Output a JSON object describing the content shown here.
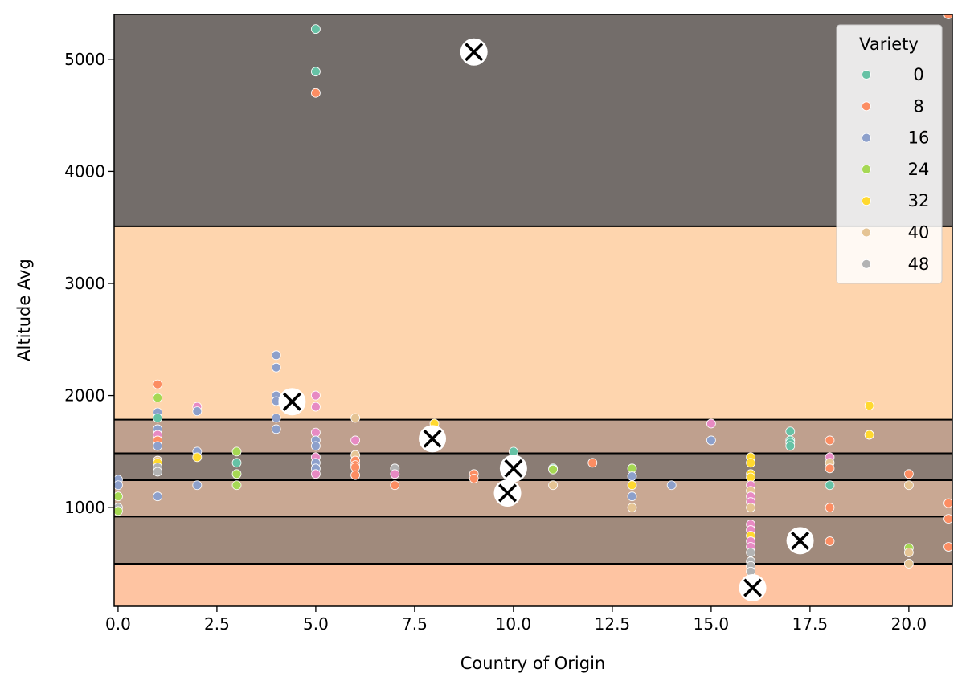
{
  "chart_data": {
    "type": "scatter",
    "xlabel": "Country of Origin",
    "ylabel": "Altitude Avg",
    "xlim": [
      -0.1,
      21.1
    ],
    "ylim": [
      120,
      5400
    ],
    "xticks": [
      "0.0",
      "2.5",
      "5.0",
      "7.5",
      "10.0",
      "12.5",
      "15.0",
      "17.5",
      "20.0"
    ],
    "xtick_values": [
      0,
      2.5,
      5,
      7.5,
      10,
      12.5,
      15,
      17.5,
      20
    ],
    "yticks": [
      "1000",
      "2000",
      "3000",
      "4000",
      "5000"
    ],
    "ytick_values": [
      1000,
      2000,
      3000,
      4000,
      5000
    ],
    "legend": {
      "title": "Variety",
      "placement": "top-right",
      "entries": [
        {
          "label": "0",
          "color": "#66c2a5"
        },
        {
          "label": "8",
          "color": "#fc8d62"
        },
        {
          "label": "16",
          "color": "#8da0cb"
        },
        {
          "label": "24",
          "color": "#a6d854"
        },
        {
          "label": "32",
          "color": "#ffd92f"
        },
        {
          "label": "40",
          "color": "#e5c494"
        },
        {
          "label": "48",
          "color": "#b3b3b3"
        }
      ]
    },
    "bands": [
      {
        "y0": 120,
        "y1": 500,
        "color": "#fec4a2"
      },
      {
        "y0": 500,
        "y1": 920,
        "color": "#a08a7c"
      },
      {
        "y0": 920,
        "y1": 1245,
        "color": "#c9a893"
      },
      {
        "y0": 1245,
        "y1": 1485,
        "color": "#8a7c74"
      },
      {
        "y0": 1485,
        "y1": 1785,
        "color": "#bfa08e"
      },
      {
        "y0": 1785,
        "y1": 3510,
        "color": "#fed5ae"
      },
      {
        "y0": 3510,
        "y1": 5400,
        "color": "#736d6a"
      }
    ],
    "boundaries": [
      500,
      920,
      1245,
      1485,
      1785,
      3510
    ],
    "centroids": [
      {
        "x": 9.0,
        "y": 5065
      },
      {
        "x": 4.4,
        "y": 1945
      },
      {
        "x": 7.95,
        "y": 1615
      },
      {
        "x": 10.0,
        "y": 1350
      },
      {
        "x": 9.85,
        "y": 1130
      },
      {
        "x": 17.25,
        "y": 705
      },
      {
        "x": 16.05,
        "y": 285
      }
    ],
    "points": [
      {
        "x": 0,
        "y": 1250,
        "c": "#8da0cb"
      },
      {
        "x": 0,
        "y": 1200,
        "c": "#8da0cb"
      },
      {
        "x": 0,
        "y": 1100,
        "c": "#a6d854"
      },
      {
        "x": 0,
        "y": 1000,
        "c": "#b3b3b3"
      },
      {
        "x": 0,
        "y": 970,
        "c": "#a6d854"
      },
      {
        "x": 1,
        "y": 2100,
        "c": "#fc8d62"
      },
      {
        "x": 1,
        "y": 1980,
        "c": "#a6d854"
      },
      {
        "x": 1,
        "y": 1850,
        "c": "#8da0cb"
      },
      {
        "x": 1,
        "y": 1800,
        "c": "#66c2a5"
      },
      {
        "x": 1,
        "y": 1700,
        "c": "#8da0cb"
      },
      {
        "x": 1,
        "y": 1650,
        "c": "#e78ac3"
      },
      {
        "x": 1,
        "y": 1600,
        "c": "#fc8d62"
      },
      {
        "x": 1,
        "y": 1550,
        "c": "#8da0cb"
      },
      {
        "x": 1,
        "y": 1420,
        "c": "#e5c494"
      },
      {
        "x": 1,
        "y": 1400,
        "c": "#ffd92f"
      },
      {
        "x": 1,
        "y": 1360,
        "c": "#b3b3b3"
      },
      {
        "x": 1,
        "y": 1320,
        "c": "#b3b3b3"
      },
      {
        "x": 1,
        "y": 1100,
        "c": "#8da0cb"
      },
      {
        "x": 2,
        "y": 1900,
        "c": "#e78ac3"
      },
      {
        "x": 2,
        "y": 1860,
        "c": "#8da0cb"
      },
      {
        "x": 2,
        "y": 1500,
        "c": "#8da0cb"
      },
      {
        "x": 2,
        "y": 1450,
        "c": "#ffd92f"
      },
      {
        "x": 2,
        "y": 1200,
        "c": "#8da0cb"
      },
      {
        "x": 3,
        "y": 1500,
        "c": "#a6d854"
      },
      {
        "x": 3,
        "y": 1400,
        "c": "#66c2a5"
      },
      {
        "x": 3,
        "y": 1300,
        "c": "#a6d854"
      },
      {
        "x": 3,
        "y": 1200,
        "c": "#a6d854"
      },
      {
        "x": 4,
        "y": 2360,
        "c": "#8da0cb"
      },
      {
        "x": 4,
        "y": 2250,
        "c": "#8da0cb"
      },
      {
        "x": 4,
        "y": 2000,
        "c": "#8da0cb"
      },
      {
        "x": 4,
        "y": 1950,
        "c": "#8da0cb"
      },
      {
        "x": 4,
        "y": 1800,
        "c": "#8da0cb"
      },
      {
        "x": 4,
        "y": 1700,
        "c": "#8da0cb"
      },
      {
        "x": 5,
        "y": 5270,
        "c": "#66c2a5"
      },
      {
        "x": 5,
        "y": 4890,
        "c": "#66c2a5"
      },
      {
        "x": 5,
        "y": 4700,
        "c": "#fc8d62"
      },
      {
        "x": 5,
        "y": 2000,
        "c": "#e78ac3"
      },
      {
        "x": 5,
        "y": 1900,
        "c": "#e78ac3"
      },
      {
        "x": 5,
        "y": 1670,
        "c": "#e78ac3"
      },
      {
        "x": 5,
        "y": 1600,
        "c": "#8da0cb"
      },
      {
        "x": 5,
        "y": 1550,
        "c": "#8da0cb"
      },
      {
        "x": 5,
        "y": 1450,
        "c": "#e78ac3"
      },
      {
        "x": 5,
        "y": 1400,
        "c": "#8da0cb"
      },
      {
        "x": 5,
        "y": 1350,
        "c": "#8da0cb"
      },
      {
        "x": 5,
        "y": 1300,
        "c": "#e78ac3"
      },
      {
        "x": 6,
        "y": 1800,
        "c": "#e5c494"
      },
      {
        "x": 6,
        "y": 1600,
        "c": "#e78ac3"
      },
      {
        "x": 6,
        "y": 1470,
        "c": "#e5c494"
      },
      {
        "x": 6,
        "y": 1420,
        "c": "#fc8d62"
      },
      {
        "x": 6,
        "y": 1380,
        "c": "#fc8d62"
      },
      {
        "x": 6,
        "y": 1360,
        "c": "#fc8d62"
      },
      {
        "x": 6,
        "y": 1290,
        "c": "#fc8d62"
      },
      {
        "x": 7,
        "y": 1350,
        "c": "#b3b3b3"
      },
      {
        "x": 7,
        "y": 1300,
        "c": "#e78ac3"
      },
      {
        "x": 7,
        "y": 1200,
        "c": "#fc8d62"
      },
      {
        "x": 8,
        "y": 1750,
        "c": "#ffd92f"
      },
      {
        "x": 9,
        "y": 1300,
        "c": "#fc8d62"
      },
      {
        "x": 9,
        "y": 1260,
        "c": "#fc8d62"
      },
      {
        "x": 10,
        "y": 1500,
        "c": "#66c2a5"
      },
      {
        "x": 11,
        "y": 1350,
        "c": "#66c2a5"
      },
      {
        "x": 11,
        "y": 1340,
        "c": "#a6d854"
      },
      {
        "x": 11,
        "y": 1200,
        "c": "#e5c494"
      },
      {
        "x": 12,
        "y": 1400,
        "c": "#fc8d62"
      },
      {
        "x": 13,
        "y": 1350,
        "c": "#a6d854"
      },
      {
        "x": 13,
        "y": 1280,
        "c": "#8da0cb"
      },
      {
        "x": 13,
        "y": 1200,
        "c": "#ffd92f"
      },
      {
        "x": 13,
        "y": 1100,
        "c": "#8da0cb"
      },
      {
        "x": 13,
        "y": 1000,
        "c": "#e5c494"
      },
      {
        "x": 14,
        "y": 1200,
        "c": "#8da0cb"
      },
      {
        "x": 15,
        "y": 1750,
        "c": "#e78ac3"
      },
      {
        "x": 15,
        "y": 1600,
        "c": "#8da0cb"
      },
      {
        "x": 16,
        "y": 1450,
        "c": "#ffd92f"
      },
      {
        "x": 16,
        "y": 1400,
        "c": "#ffd92f"
      },
      {
        "x": 16,
        "y": 1300,
        "c": "#ffd92f"
      },
      {
        "x": 16,
        "y": 1270,
        "c": "#ffd92f"
      },
      {
        "x": 16,
        "y": 1200,
        "c": "#e78ac3"
      },
      {
        "x": 16,
        "y": 1150,
        "c": "#e5c494"
      },
      {
        "x": 16,
        "y": 1100,
        "c": "#e78ac3"
      },
      {
        "x": 16,
        "y": 1050,
        "c": "#e78ac3"
      },
      {
        "x": 16,
        "y": 1000,
        "c": "#e5c494"
      },
      {
        "x": 16,
        "y": 850,
        "c": "#e78ac3"
      },
      {
        "x": 16,
        "y": 800,
        "c": "#e78ac3"
      },
      {
        "x": 16,
        "y": 750,
        "c": "#ffd92f"
      },
      {
        "x": 16,
        "y": 700,
        "c": "#e78ac3"
      },
      {
        "x": 16,
        "y": 650,
        "c": "#e78ac3"
      },
      {
        "x": 16,
        "y": 600,
        "c": "#b3b3b3"
      },
      {
        "x": 16,
        "y": 520,
        "c": "#b3b3b3"
      },
      {
        "x": 16,
        "y": 480,
        "c": "#b3b3b3"
      },
      {
        "x": 16,
        "y": 430,
        "c": "#b3b3b3"
      },
      {
        "x": 17,
        "y": 1680,
        "c": "#66c2a5"
      },
      {
        "x": 17,
        "y": 1600,
        "c": "#66c2a5"
      },
      {
        "x": 17,
        "y": 1580,
        "c": "#66c2a5"
      },
      {
        "x": 17,
        "y": 1550,
        "c": "#66c2a5"
      },
      {
        "x": 18,
        "y": 1600,
        "c": "#fc8d62"
      },
      {
        "x": 18,
        "y": 1450,
        "c": "#e78ac3"
      },
      {
        "x": 18,
        "y": 1400,
        "c": "#e5c494"
      },
      {
        "x": 18,
        "y": 1350,
        "c": "#fc8d62"
      },
      {
        "x": 18,
        "y": 1200,
        "c": "#66c2a5"
      },
      {
        "x": 18,
        "y": 1000,
        "c": "#fc8d62"
      },
      {
        "x": 18,
        "y": 700,
        "c": "#fc8d62"
      },
      {
        "x": 19,
        "y": 1910,
        "c": "#ffd92f"
      },
      {
        "x": 19,
        "y": 1650,
        "c": "#e5c494"
      },
      {
        "x": 19,
        "y": 1650,
        "c": "#ffd92f"
      },
      {
        "x": 20,
        "y": 1300,
        "c": "#fc8d62"
      },
      {
        "x": 20,
        "y": 1200,
        "c": "#e5c494"
      },
      {
        "x": 20,
        "y": 640,
        "c": "#a6d854"
      },
      {
        "x": 20,
        "y": 600,
        "c": "#e5c494"
      },
      {
        "x": 20,
        "y": 500,
        "c": "#e5c494"
      },
      {
        "x": 21,
        "y": 5400,
        "c": "#fc8d62"
      },
      {
        "x": 21,
        "y": 1040,
        "c": "#fc8d62"
      },
      {
        "x": 21,
        "y": 900,
        "c": "#fc8d62"
      },
      {
        "x": 21,
        "y": 650,
        "c": "#fc8d62"
      }
    ]
  }
}
